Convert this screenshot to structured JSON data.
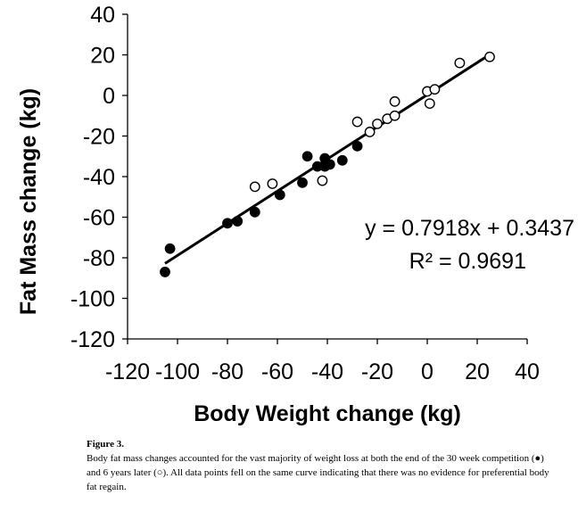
{
  "chart_data": {
    "type": "scatter",
    "xlabel": "Body Weight change (kg)",
    "ylabel": "Fat Mass change (kg)",
    "xlim": [
      -120,
      40
    ],
    "ylim": [
      -120,
      40
    ],
    "xticks": [
      -120,
      -100,
      -80,
      -60,
      -40,
      -20,
      0,
      20,
      40
    ],
    "yticks": [
      40,
      20,
      0,
      -20,
      -40,
      -60,
      -80,
      -100,
      -120
    ],
    "series": [
      {
        "marker": "filled-circle",
        "points": [
          {
            "x": -105,
            "y": -87
          },
          {
            "x": -103,
            "y": -75.5
          },
          {
            "x": -80,
            "y": -63
          },
          {
            "x": -76,
            "y": -62
          },
          {
            "x": -69,
            "y": -57.5
          },
          {
            "x": -59,
            "y": -49
          },
          {
            "x": -50,
            "y": -43
          },
          {
            "x": -48,
            "y": -30
          },
          {
            "x": -44,
            "y": -35
          },
          {
            "x": -41,
            "y": -31
          },
          {
            "x": -41,
            "y": -35
          },
          {
            "x": -39,
            "y": -34
          },
          {
            "x": -34,
            "y": -32
          },
          {
            "x": -28,
            "y": -25
          }
        ]
      },
      {
        "marker": "open-circle",
        "points": [
          {
            "x": -69,
            "y": -45
          },
          {
            "x": -62,
            "y": -43.5
          },
          {
            "x": -42,
            "y": -42
          },
          {
            "x": -28,
            "y": -13
          },
          {
            "x": -23,
            "y": -18
          },
          {
            "x": -20,
            "y": -14
          },
          {
            "x": -16,
            "y": -11.5
          },
          {
            "x": -13,
            "y": -10
          },
          {
            "x": -13,
            "y": -3
          },
          {
            "x": 0,
            "y": 2
          },
          {
            "x": 1,
            "y": -4
          },
          {
            "x": 3,
            "y": 3
          },
          {
            "x": 13,
            "y": 16
          },
          {
            "x": 25,
            "y": 19
          }
        ]
      }
    ],
    "trendline": {
      "slope": 0.7918,
      "intercept": 0.3437,
      "x_start": -105,
      "x_end": 25
    },
    "annotations": {
      "equation": "y = 0.7918x + 0.3437",
      "r_squared": "R² = 0.9691"
    },
    "grid": false
  },
  "caption": {
    "label": "Figure 3.",
    "text": "Body fat mass changes accounted for the vast majority of weight loss at both the end of the 30 week competition (●) and 6 years later (○). All data points fell on the same curve indicating that there was no evidence for preferential body fat regain."
  }
}
